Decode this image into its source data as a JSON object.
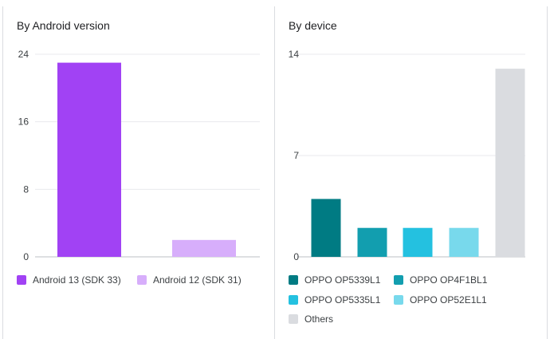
{
  "chart_data": [
    {
      "type": "bar",
      "title": "By Android version",
      "categories": [
        "Android 13 (SDK 33)",
        "Android 12 (SDK 31)"
      ],
      "values": [
        23,
        2
      ],
      "colors": [
        "#a142f4",
        "#d7aefb"
      ],
      "ylim": [
        0,
        24
      ],
      "yticks": [
        "0",
        "8",
        "16",
        "24"
      ],
      "xlabel": "",
      "ylabel": "",
      "grid": true,
      "legend": "bottom"
    },
    {
      "type": "bar",
      "title": "By device",
      "categories": [
        "OPPO OP5339L1",
        "OPPO OP4F1BL1",
        "OPPO OP5335L1",
        "OPPO OP52E1L1",
        "Others"
      ],
      "values": [
        4,
        2,
        2,
        2,
        13
      ],
      "colors": [
        "#007b83",
        "#129eaf",
        "#24c1e0",
        "#78d9ec",
        "#dadce0"
      ],
      "ylim": [
        0,
        14
      ],
      "yticks": [
        "0",
        "7",
        "14"
      ],
      "xlabel": "",
      "ylabel": "",
      "grid": true,
      "legend": "bottom"
    }
  ]
}
